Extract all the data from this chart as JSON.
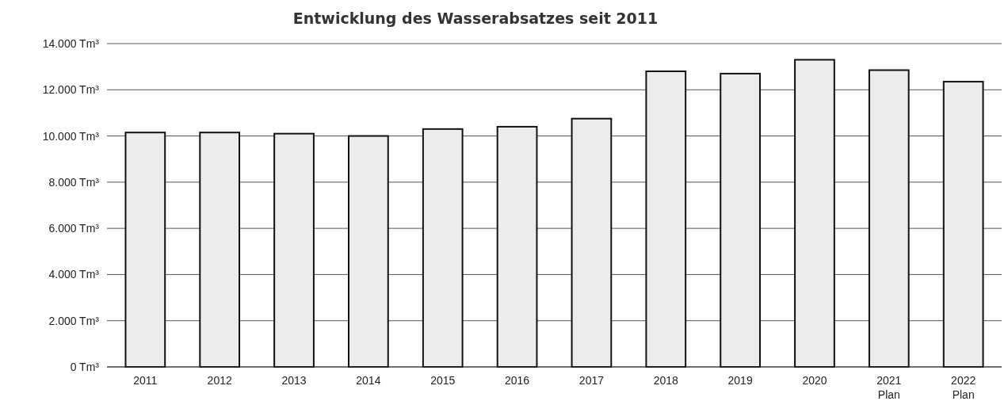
{
  "chart_data": {
    "type": "bar",
    "title": "Entwicklung des Wasserabsatzes seit 2011",
    "categories": [
      "2011",
      "2012",
      "2013",
      "2014",
      "2015",
      "2016",
      "2017",
      "2018",
      "2019",
      "2020",
      "2021\nPlan",
      "2022\nPlan"
    ],
    "values": [
      10150,
      10150,
      10100,
      10000,
      10300,
      10400,
      10750,
      12800,
      12700,
      13300,
      12850,
      12350
    ],
    "color": "#ececec",
    "ylim": [
      0,
      14000
    ],
    "yticks": [
      {
        "value": 0,
        "label": "0 Tm³"
      },
      {
        "value": 2000,
        "label": "2.000 Tm³"
      },
      {
        "value": 4000,
        "label": "4.000 Tm³"
      },
      {
        "value": 6000,
        "label": "6.000 Tm³"
      },
      {
        "value": 8000,
        "label": "8.000 Tm³"
      },
      {
        "value": 10000,
        "label": "10.000 Tm³"
      },
      {
        "value": 12000,
        "label": "12.000 Tm³"
      },
      {
        "value": 14000,
        "label": "14.000 Tm³"
      }
    ],
    "grid": true
  }
}
